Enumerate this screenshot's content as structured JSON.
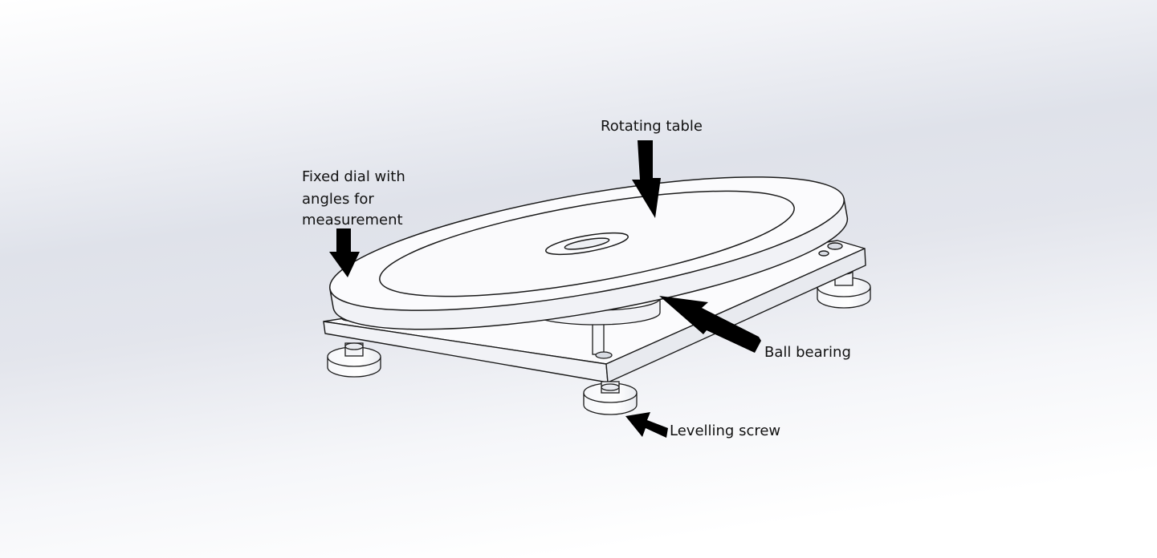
{
  "labels": {
    "rotating_table": "Rotating table",
    "fixed_dial": [
      "Fixed dial with",
      "angles for",
      "measurement"
    ],
    "ball_bearing": "Ball bearing",
    "levelling_screw": "Levelling screw"
  },
  "colors": {
    "line": "#1a1a1a",
    "part_fill": "#fbfbfd",
    "arrow": "#000000",
    "background_mid": "#dfe2ea"
  }
}
